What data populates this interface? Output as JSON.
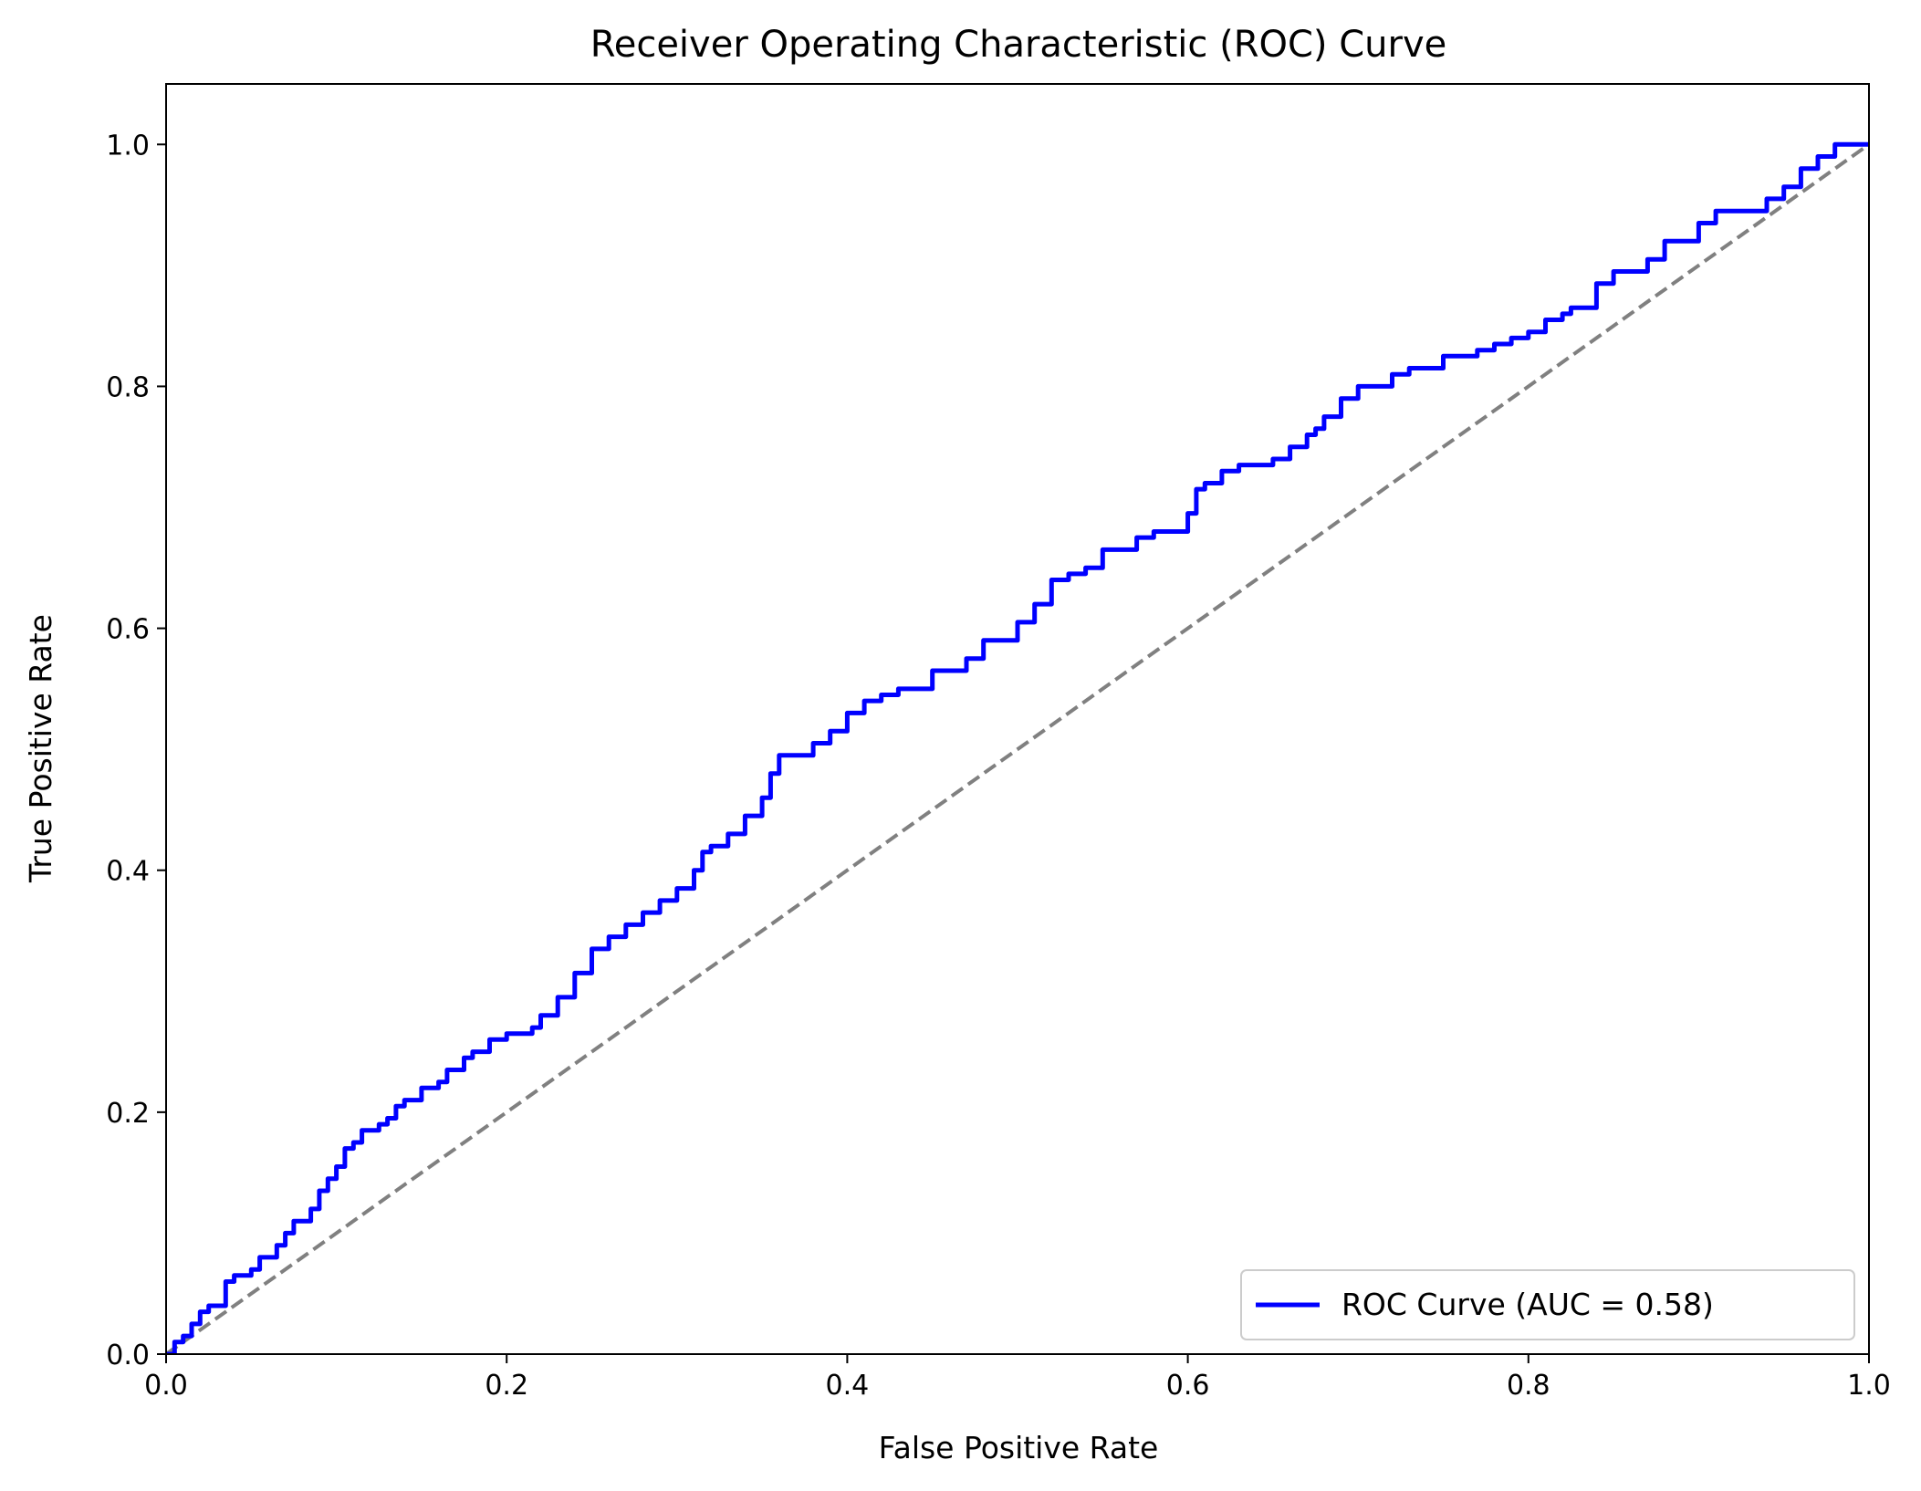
{
  "chart_data": {
    "type": "line",
    "title": "Receiver Operating Characteristic (ROC) Curve",
    "xlabel": "False Positive Rate",
    "ylabel": "True Positive Rate",
    "xlim": [
      0.0,
      1.0
    ],
    "ylim": [
      0.0,
      1.05
    ],
    "x_ticks": [
      "0.0",
      "0.2",
      "0.4",
      "0.6",
      "0.8",
      "1.0"
    ],
    "y_ticks": [
      "0.0",
      "0.2",
      "0.4",
      "0.6",
      "0.8",
      "1.0"
    ],
    "grid": false,
    "legend_position": "lower-right",
    "series": [
      {
        "name": "ROC Curve (AUC = 0.58)",
        "color": "#0000ff",
        "style": "solid",
        "x": [
          0.0,
          0.005,
          0.01,
          0.015,
          0.02,
          0.025,
          0.033,
          0.035,
          0.04,
          0.05,
          0.055,
          0.065,
          0.07,
          0.075,
          0.085,
          0.09,
          0.095,
          0.1,
          0.105,
          0.11,
          0.115,
          0.125,
          0.13,
          0.135,
          0.14,
          0.15,
          0.16,
          0.165,
          0.175,
          0.18,
          0.19,
          0.2,
          0.21,
          0.215,
          0.22,
          0.23,
          0.24,
          0.25,
          0.26,
          0.27,
          0.28,
          0.29,
          0.3,
          0.31,
          0.315,
          0.32,
          0.33,
          0.34,
          0.35,
          0.355,
          0.36,
          0.37,
          0.38,
          0.39,
          0.4,
          0.41,
          0.42,
          0.43,
          0.45,
          0.46,
          0.47,
          0.48,
          0.5,
          0.51,
          0.52,
          0.53,
          0.54,
          0.55,
          0.57,
          0.58,
          0.6,
          0.605,
          0.61,
          0.62,
          0.63,
          0.65,
          0.66,
          0.67,
          0.675,
          0.68,
          0.69,
          0.7,
          0.72,
          0.725,
          0.73,
          0.75,
          0.77,
          0.78,
          0.79,
          0.8,
          0.81,
          0.82,
          0.825,
          0.84,
          0.85,
          0.87,
          0.88,
          0.9,
          0.91,
          0.93,
          0.94,
          0.95,
          0.96,
          0.97,
          0.98,
          1.0
        ],
        "y": [
          0.0,
          0.01,
          0.015,
          0.025,
          0.035,
          0.04,
          0.04,
          0.06,
          0.065,
          0.07,
          0.08,
          0.09,
          0.1,
          0.11,
          0.12,
          0.135,
          0.145,
          0.155,
          0.17,
          0.175,
          0.185,
          0.19,
          0.195,
          0.205,
          0.21,
          0.22,
          0.225,
          0.235,
          0.245,
          0.25,
          0.26,
          0.265,
          0.265,
          0.27,
          0.28,
          0.295,
          0.315,
          0.335,
          0.345,
          0.355,
          0.365,
          0.375,
          0.385,
          0.4,
          0.415,
          0.42,
          0.43,
          0.445,
          0.46,
          0.48,
          0.495,
          0.495,
          0.505,
          0.515,
          0.53,
          0.54,
          0.545,
          0.55,
          0.565,
          0.565,
          0.575,
          0.59,
          0.605,
          0.62,
          0.64,
          0.645,
          0.65,
          0.665,
          0.675,
          0.68,
          0.695,
          0.715,
          0.72,
          0.73,
          0.735,
          0.74,
          0.75,
          0.76,
          0.765,
          0.775,
          0.79,
          0.8,
          0.81,
          0.81,
          0.815,
          0.825,
          0.83,
          0.835,
          0.84,
          0.845,
          0.855,
          0.86,
          0.865,
          0.885,
          0.895,
          0.905,
          0.92,
          0.935,
          0.945,
          0.945,
          0.955,
          0.965,
          0.98,
          0.99,
          1.0,
          1.0
        ]
      },
      {
        "name": "",
        "color": "#808080",
        "style": "dashed",
        "x": [
          0.0,
          1.0
        ],
        "y": [
          0.0,
          1.0
        ]
      }
    ]
  }
}
